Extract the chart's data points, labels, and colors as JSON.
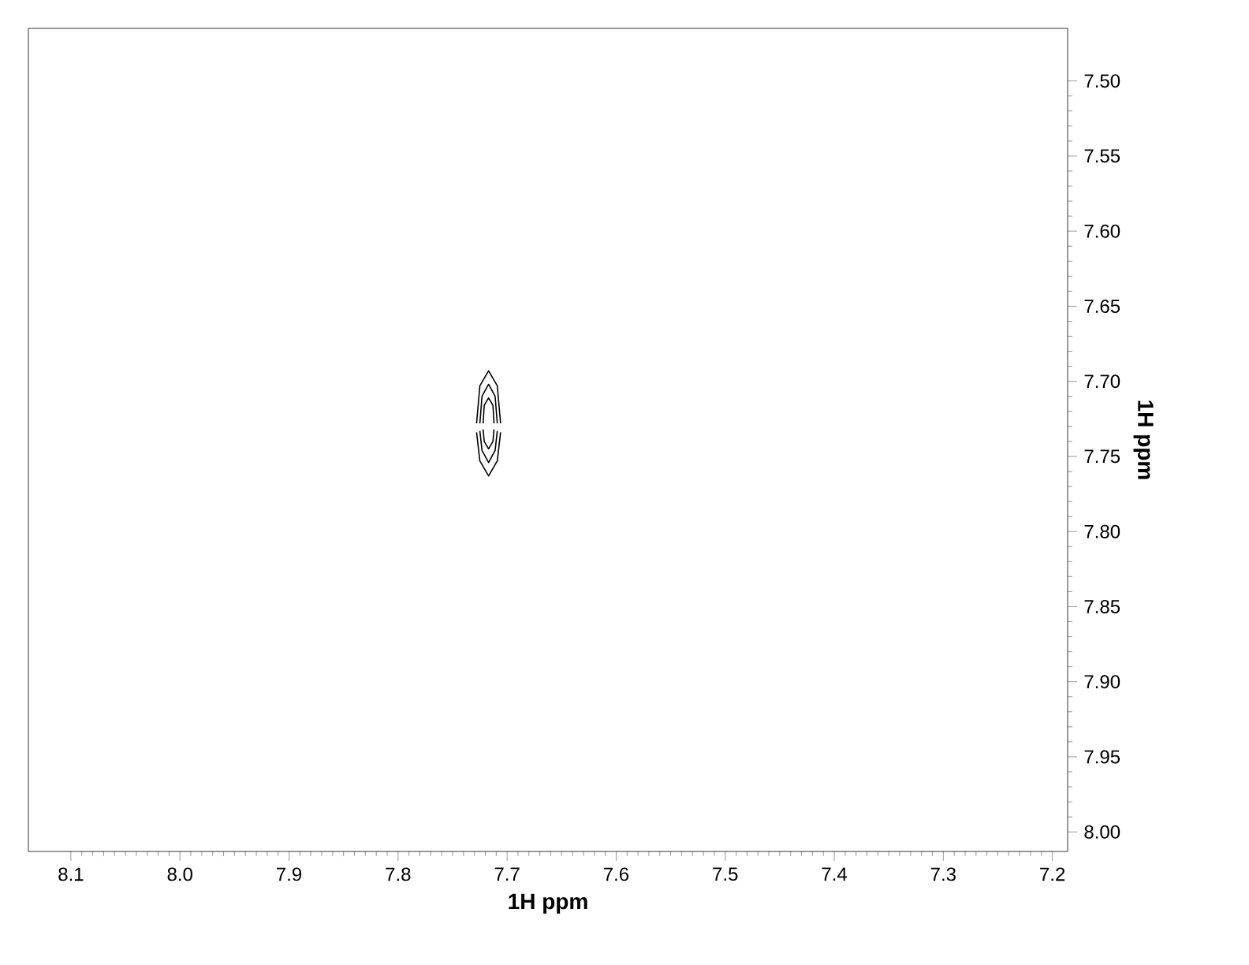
{
  "chart_data": {
    "type": "line",
    "xlabel": "1H ppm",
    "ylabel": "1H ppm",
    "marker": "none",
    "line_style": "solid",
    "grid": false,
    "series": [
      {
        "color": "#000000",
        "x": [
          7.728,
          7.725,
          7.717,
          7.709,
          7.706
        ],
        "values": [
          7.728,
          7.703,
          7.693,
          7.703,
          7.728
        ]
      },
      {
        "color": "#000000",
        "x": [
          7.728,
          7.725,
          7.717,
          7.709,
          7.706
        ],
        "values": [
          7.734,
          7.753,
          7.763,
          7.753,
          7.734
        ]
      },
      {
        "color": "#000000",
        "x": [
          7.725,
          7.723,
          7.717,
          7.711,
          7.709
        ],
        "values": [
          7.728,
          7.71,
          7.702,
          7.71,
          7.728
        ]
      },
      {
        "color": "#000000",
        "x": [
          7.725,
          7.723,
          7.717,
          7.711,
          7.709
        ],
        "values": [
          7.733,
          7.746,
          7.754,
          7.746,
          7.733
        ]
      },
      {
        "color": "#000000",
        "x": [
          7.722,
          7.721,
          7.717,
          7.713,
          7.712
        ],
        "values": [
          7.728,
          7.716,
          7.711,
          7.716,
          7.728
        ]
      },
      {
        "color": "#000000",
        "x": [
          7.722,
          7.721,
          7.717,
          7.713,
          7.712
        ],
        "values": [
          7.732,
          7.74,
          7.745,
          7.74,
          7.732
        ]
      }
    ],
    "xlim": [
      8.139,
      7.186
    ],
    "ylim": [
      8.013,
      7.465
    ],
    "xticks": [
      8.1,
      {
        "value": 8.0,
        "label": "8.0"
      },
      7.9,
      7.8,
      7.7,
      7.6,
      7.5,
      7.4,
      7.3,
      7.2
    ],
    "yticks": [
      {
        "value": 7.5,
        "label": "7.50"
      },
      {
        "value": 7.55,
        "label": "7.55"
      },
      {
        "value": 7.6,
        "label": "7.60"
      },
      {
        "value": 7.65,
        "label": "7.65"
      },
      {
        "value": 7.7,
        "label": "7.70"
      },
      {
        "value": 7.75,
        "label": "7.75"
      },
      {
        "value": 7.8,
        "label": "7.80"
      },
      {
        "value": 7.85,
        "label": "7.85"
      },
      {
        "value": 7.9,
        "label": "7.90"
      },
      {
        "value": 7.95,
        "label": "7.95"
      },
      {
        "value": 8.0,
        "label": "8.00"
      }
    ]
  }
}
